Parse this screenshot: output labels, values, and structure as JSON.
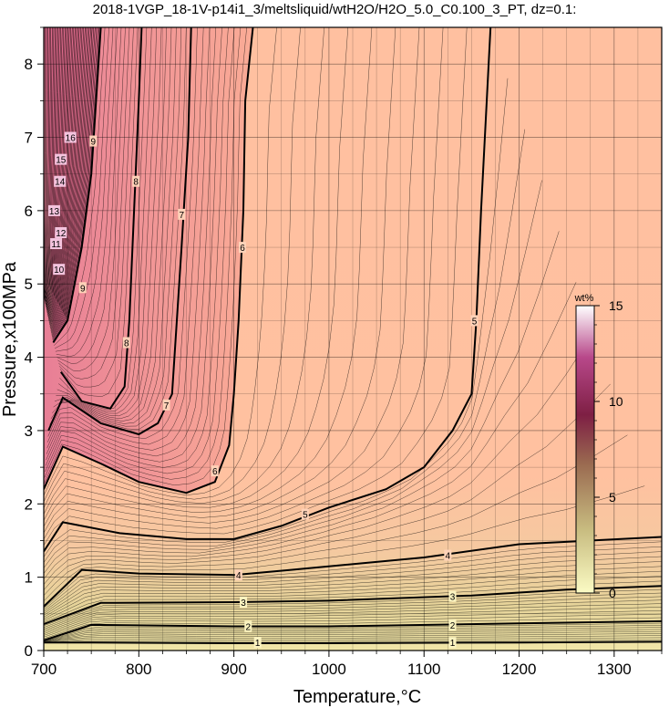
{
  "chart_data": {
    "type": "contour",
    "title": "2018-1VGP_18-1V-p14i1_3/meltsliquid/wtH2O/H2O_5.0_C0.100_3_PT, dz=0.1:",
    "xlabel": "Temperature,°C",
    "ylabel": "Pressure,x100MPa",
    "xlim": [
      700,
      1350
    ],
    "ylim": [
      0,
      8.5
    ],
    "xticks": [
      700,
      800,
      900,
      1000,
      1100,
      1200,
      1300
    ],
    "yticks": [
      0,
      1,
      2,
      3,
      4,
      5,
      6,
      7,
      8
    ],
    "grid": true,
    "colorbar": {
      "title": "wt%",
      "range": [
        0,
        15
      ],
      "ticks": [
        0,
        5,
        10,
        15
      ],
      "colors": [
        "#fbfbc4",
        "#c8bc80",
        "#9a6a50",
        "#7e1f44",
        "#b8488a",
        "#ffffff"
      ]
    },
    "fill_colors": [
      "#fbfbc4",
      "#d9cf8f",
      "#ffc1a0",
      "#f9a894",
      "#ec7f9c"
    ],
    "major_contours": [
      {
        "level": 1,
        "points": [
          [
            700,
            0.11
          ],
          [
            750,
            0.11
          ],
          [
            900,
            0.1
          ],
          [
            1000,
            0.1
          ],
          [
            1200,
            0.11
          ],
          [
            1350,
            0.12
          ]
        ]
      },
      {
        "level": 2,
        "points": [
          [
            700,
            0.14
          ],
          [
            750,
            0.35
          ],
          [
            900,
            0.33
          ],
          [
            1000,
            0.33
          ],
          [
            1200,
            0.37
          ],
          [
            1350,
            0.4
          ]
        ]
      },
      {
        "level": 3,
        "points": [
          [
            700,
            0.36
          ],
          [
            760,
            0.65
          ],
          [
            900,
            0.66
          ],
          [
            1000,
            0.68
          ],
          [
            1150,
            0.75
          ],
          [
            1250,
            0.83
          ],
          [
            1350,
            0.88
          ]
        ]
      },
      {
        "level": 4,
        "points": [
          [
            700,
            0.6
          ],
          [
            740,
            1.1
          ],
          [
            800,
            1.05
          ],
          [
            900,
            1.03
          ],
          [
            960,
            1.1
          ],
          [
            1100,
            1.27
          ],
          [
            1200,
            1.45
          ],
          [
            1350,
            1.55
          ]
        ]
      },
      {
        "level": 5,
        "points": [
          [
            700,
            1.35
          ],
          [
            720,
            1.75
          ],
          [
            780,
            1.6
          ],
          [
            850,
            1.52
          ],
          [
            900,
            1.52
          ],
          [
            950,
            1.7
          ],
          [
            1000,
            1.95
          ],
          [
            1060,
            2.2
          ],
          [
            1100,
            2.5
          ],
          [
            1130,
            3.0
          ],
          [
            1150,
            3.5
          ],
          [
            1155,
            4.5
          ],
          [
            1160,
            6.0
          ],
          [
            1170,
            8.5
          ]
        ]
      },
      {
        "level": 6,
        "points": [
          [
            700,
            2.2
          ],
          [
            720,
            2.78
          ],
          [
            760,
            2.55
          ],
          [
            800,
            2.3
          ],
          [
            850,
            2.15
          ],
          [
            880,
            2.3
          ],
          [
            895,
            2.8
          ],
          [
            900,
            3.5
          ],
          [
            905,
            4.5
          ],
          [
            910,
            6.0
          ],
          [
            912,
            7.5
          ],
          [
            920,
            8.5
          ]
        ]
      },
      {
        "level": 7,
        "points": [
          [
            705,
            3.0
          ],
          [
            720,
            3.45
          ],
          [
            760,
            3.1
          ],
          [
            800,
            2.95
          ],
          [
            820,
            3.1
          ],
          [
            835,
            3.5
          ],
          [
            840,
            4.5
          ],
          [
            845,
            5.5
          ],
          [
            852,
            7.0
          ],
          [
            855,
            8.5
          ]
        ]
      },
      {
        "level": 8,
        "points": [
          [
            718,
            3.8
          ],
          [
            740,
            3.4
          ],
          [
            770,
            3.3
          ],
          [
            785,
            3.6
          ],
          [
            790,
            4.5
          ],
          [
            795,
            6.0
          ],
          [
            800,
            7.5
          ],
          [
            803,
            8.5
          ]
        ]
      },
      {
        "level": 9,
        "points": [
          [
            710,
            4.2
          ],
          [
            725,
            4.5
          ],
          [
            740,
            5.5
          ],
          [
            750,
            6.5
          ],
          [
            755,
            7.5
          ],
          [
            760,
            8.5
          ]
        ]
      }
    ],
    "contour_labels": [
      {
        "text": "1",
        "x": 925,
        "y": 0.11
      },
      {
        "text": "1",
        "x": 1130,
        "y": 0.11
      },
      {
        "text": "2",
        "x": 915,
        "y": 0.33
      },
      {
        "text": "2",
        "x": 1130,
        "y": 0.35
      },
      {
        "text": "3",
        "x": 910,
        "y": 0.66
      },
      {
        "text": "3",
        "x": 1130,
        "y": 0.74
      },
      {
        "text": "4",
        "x": 905,
        "y": 1.03
      },
      {
        "text": "4",
        "x": 1125,
        "y": 1.3
      },
      {
        "text": "5",
        "x": 975,
        "y": 1.86
      },
      {
        "text": "5",
        "x": 1153,
        "y": 4.5
      },
      {
        "text": "6",
        "x": 880,
        "y": 2.45
      },
      {
        "text": "6",
        "x": 909,
        "y": 5.5
      },
      {
        "text": "7",
        "x": 829,
        "y": 3.35
      },
      {
        "text": "7",
        "x": 845,
        "y": 5.95
      },
      {
        "text": "8",
        "x": 787,
        "y": 4.2
      },
      {
        "text": "8",
        "x": 797,
        "y": 6.4
      },
      {
        "text": "9",
        "x": 741,
        "y": 4.95
      },
      {
        "text": "9",
        "x": 752,
        "y": 6.95
      },
      {
        "text": "10",
        "x": 716,
        "y": 5.2
      },
      {
        "text": "11",
        "x": 713,
        "y": 5.55
      },
      {
        "text": "12",
        "x": 718,
        "y": 5.7
      },
      {
        "text": "13",
        "x": 711,
        "y": 6.0
      },
      {
        "text": "14",
        "x": 717,
        "y": 6.4
      },
      {
        "text": "15",
        "x": 718,
        "y": 6.7
      },
      {
        "text": "16",
        "x": 728,
        "y": 7.0
      }
    ]
  }
}
